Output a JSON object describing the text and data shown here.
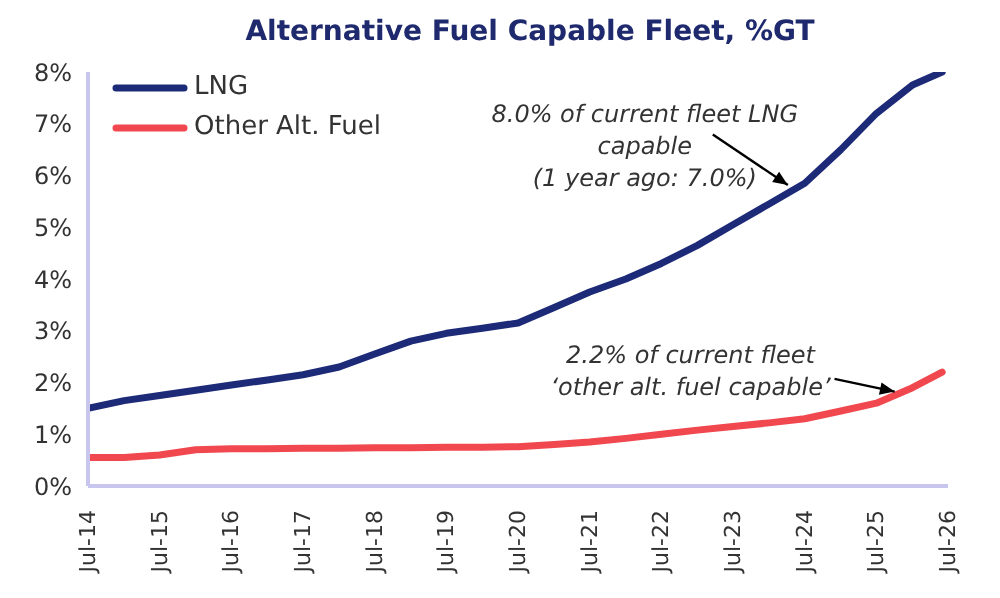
{
  "chart_data": {
    "type": "line",
    "title": "Alternative Fuel Capable Fleet, %GT",
    "x": [
      "2014-07",
      "2015-01",
      "2015-07",
      "2016-01",
      "2016-07",
      "2017-01",
      "2017-07",
      "2018-01",
      "2018-07",
      "2019-01",
      "2019-07",
      "2020-01",
      "2020-07",
      "2021-01",
      "2021-07",
      "2022-01",
      "2022-07",
      "2023-01",
      "2023-07",
      "2024-01",
      "2024-07",
      "2025-01",
      "2025-07",
      "2026-01",
      "2026-06"
    ],
    "series": [
      {
        "name": "LNG",
        "color": "#1c2a78",
        "values": [
          1.5,
          1.65,
          1.75,
          1.85,
          1.95,
          2.05,
          2.15,
          2.3,
          2.55,
          2.8,
          2.95,
          3.05,
          3.15,
          3.45,
          3.75,
          4.0,
          4.3,
          4.65,
          5.05,
          5.45,
          5.85,
          6.5,
          7.2,
          7.75,
          8.0
        ]
      },
      {
        "name": "Other Alt. Fuel",
        "color": "#f0484e",
        "values": [
          0.55,
          0.55,
          0.6,
          0.7,
          0.72,
          0.72,
          0.73,
          0.73,
          0.74,
          0.74,
          0.75,
          0.75,
          0.76,
          0.8,
          0.85,
          0.92,
          1.0,
          1.08,
          1.15,
          1.22,
          1.3,
          1.45,
          1.6,
          1.9,
          2.2
        ]
      }
    ],
    "xlim": [
      "2014-07",
      "2026-07"
    ],
    "xticks": [
      {
        "value": "2014-07",
        "label": "Jul-14"
      },
      {
        "value": "2015-07",
        "label": "Jul-15"
      },
      {
        "value": "2016-07",
        "label": "Jul-16"
      },
      {
        "value": "2017-07",
        "label": "Jul-17"
      },
      {
        "value": "2018-07",
        "label": "Jul-18"
      },
      {
        "value": "2019-07",
        "label": "Jul-19"
      },
      {
        "value": "2020-07",
        "label": "Jul-20"
      },
      {
        "value": "2021-07",
        "label": "Jul-21"
      },
      {
        "value": "2022-07",
        "label": "Jul-22"
      },
      {
        "value": "2023-07",
        "label": "Jul-23"
      },
      {
        "value": "2024-07",
        "label": "Jul-24"
      },
      {
        "value": "2025-07",
        "label": "Jul-25"
      },
      {
        "value": "2026-07",
        "label": "Jul-26"
      }
    ],
    "ylim": [
      0,
      8
    ],
    "yticks": [
      {
        "value": 0,
        "label": "0%"
      },
      {
        "value": 1,
        "label": "1%"
      },
      {
        "value": 2,
        "label": "2%"
      },
      {
        "value": 3,
        "label": "3%"
      },
      {
        "value": 4,
        "label": "4%"
      },
      {
        "value": 5,
        "label": "5%"
      },
      {
        "value": 6,
        "label": "6%"
      },
      {
        "value": 7,
        "label": "7%"
      },
      {
        "value": 8,
        "label": "8%"
      }
    ],
    "annotations": [
      {
        "text": "8.0% of current fleet LNG\ncapable\n(1 year ago: 7.0%)",
        "x": "2024-05",
        "y": 5.75
      },
      {
        "text": "2.2% of current fleet\n‘other alt. fuel capable’",
        "x": "2025-11",
        "y": 1.8
      }
    ],
    "grid": false,
    "legend": "top left",
    "marker": "none",
    "line_style": "solid"
  }
}
